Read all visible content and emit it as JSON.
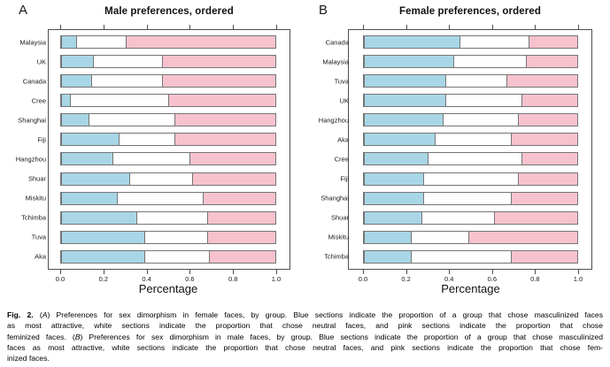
{
  "chart_data": [
    {
      "type": "bar",
      "stacked": true,
      "orientation": "horizontal",
      "panel_letter": "A",
      "title": "Male preferences, ordered",
      "xlabel": "Percentage",
      "xlim": [
        0,
        1
      ],
      "xticks": [
        0.0,
        0.2,
        0.4,
        0.6,
        0.8,
        1.0
      ],
      "xtick_labels": [
        "0.0",
        "0.2",
        "0.4",
        "0.6",
        "0.8",
        "1.0"
      ],
      "grid": false,
      "legend": "none",
      "categories": [
        "Malaysia",
        "UK",
        "Canada",
        "Cree",
        "Shanghai",
        "Fiji",
        "Hangzhou",
        "Shuar",
        "Miskitu",
        "Tchimba",
        "Tuva",
        "Aka"
      ],
      "series": [
        {
          "name": "masculinized",
          "color": "#a8d6e6",
          "values": [
            0.07,
            0.15,
            0.14,
            0.04,
            0.13,
            0.27,
            0.24,
            0.32,
            0.26,
            0.35,
            0.39,
            0.39
          ]
        },
        {
          "name": "neutral",
          "color": "#ffffff",
          "values": [
            0.23,
            0.32,
            0.33,
            0.46,
            0.4,
            0.26,
            0.36,
            0.29,
            0.4,
            0.33,
            0.29,
            0.3
          ]
        },
        {
          "name": "feminized",
          "color": "#f7c2cd",
          "values": [
            0.7,
            0.53,
            0.53,
            0.5,
            0.47,
            0.47,
            0.4,
            0.39,
            0.34,
            0.32,
            0.32,
            0.31
          ]
        }
      ]
    },
    {
      "type": "bar",
      "stacked": true,
      "orientation": "horizontal",
      "panel_letter": "B",
      "title": "Female preferences, ordered",
      "xlabel": "Percentage",
      "xlim": [
        0,
        1
      ],
      "xticks": [
        0.0,
        0.2,
        0.4,
        0.6,
        0.8,
        1.0
      ],
      "xtick_labels": [
        "0.0",
        "0.2",
        "0.4",
        "0.6",
        "0.8",
        "1.0"
      ],
      "grid": false,
      "legend": "none",
      "categories": [
        "Canada",
        "Malaysia",
        "Tuva",
        "UK",
        "Hangzhou",
        "Aka",
        "Cree",
        "Fiji",
        "Shanghai",
        "Shuar",
        "Miskitu",
        "Tchimba"
      ],
      "series": [
        {
          "name": "masculinized",
          "color": "#a8d6e6",
          "values": [
            0.45,
            0.42,
            0.38,
            0.38,
            0.37,
            0.33,
            0.3,
            0.28,
            0.28,
            0.27,
            0.22,
            0.22
          ]
        },
        {
          "name": "neutral",
          "color": "#ffffff",
          "values": [
            0.32,
            0.34,
            0.29,
            0.36,
            0.35,
            0.36,
            0.44,
            0.44,
            0.41,
            0.34,
            0.27,
            0.47
          ]
        },
        {
          "name": "feminized",
          "color": "#f7c2cd",
          "values": [
            0.23,
            0.24,
            0.33,
            0.26,
            0.28,
            0.31,
            0.26,
            0.28,
            0.31,
            0.39,
            0.51,
            0.31
          ]
        }
      ]
    }
  ],
  "colors": {
    "masculinized_blue": "#a8d6e6",
    "neutral_white": "#ffffff",
    "feminized_pink": "#f7c2cd",
    "bar_border": "#757575",
    "box_border": "#4f4f4f"
  },
  "caption": {
    "label": "Fig. 2.",
    "lines": [
      [
        {
          "s": "b",
          "t": "Fig. 2."
        },
        {
          "s": "",
          "t": "  ("
        },
        {
          "s": "i",
          "t": "A"
        },
        {
          "s": "",
          "t": ") Preferences for sex dimorphism in female faces, by group. Blue sections indicate the proportion of a group that chose masculinized faces"
        }
      ],
      [
        {
          "s": "",
          "t": "as most attractive, white sections indicate the proportion that chose neutral faces, and pink sections indicate the proportion that chose"
        }
      ],
      [
        {
          "s": "",
          "t": "feminized faces. ("
        },
        {
          "s": "i",
          "t": "B"
        },
        {
          "s": "",
          "t": ") Preferences for sex dimorphism in male faces, by group. Blue sections indicate the proportion of a group that chose masculinized"
        }
      ],
      [
        {
          "s": "",
          "t": "faces as most attractive, white sections indicate the proportion that chose neutral faces, and pink sections indicate the proportion that chose fem-"
        }
      ],
      [
        {
          "s": "",
          "t": "inized faces."
        }
      ]
    ]
  }
}
